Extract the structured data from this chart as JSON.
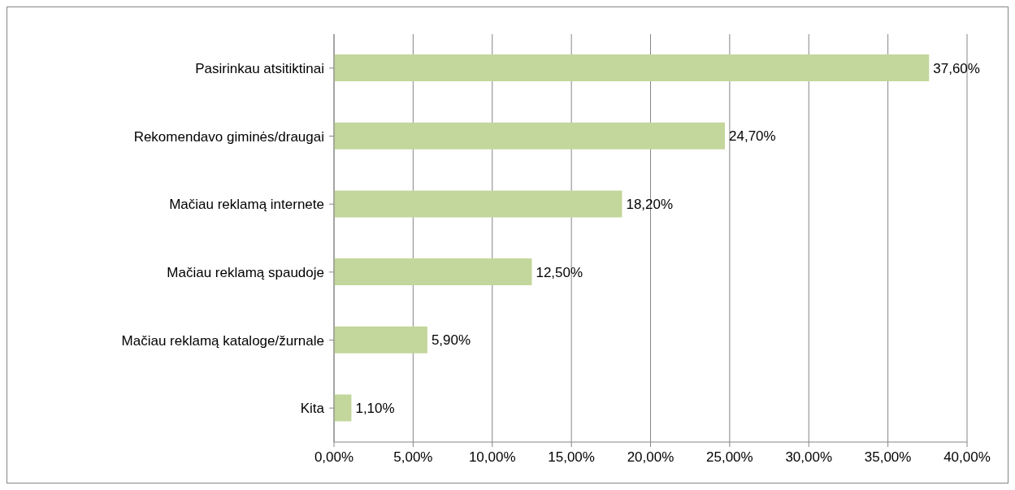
{
  "chart_data": {
    "type": "bar",
    "orientation": "horizontal",
    "categories": [
      "Pasirinkau atsitiktinai",
      "Rekomendavo giminės/draugai",
      "Mačiau reklamą internete",
      "Mačiau reklamą spaudoje",
      "Mačiau reklamą kataloge/žurnale",
      "Kita"
    ],
    "values": [
      37.6,
      24.7,
      18.2,
      12.5,
      5.9,
      1.1
    ],
    "value_labels": [
      "37,60%",
      "24,70%",
      "18,20%",
      "12,50%",
      "5,90%",
      "1,10%"
    ],
    "color": "#c3d69b",
    "xlim": [
      0,
      40
    ],
    "xticks": [
      {
        "value": 0,
        "label": "0,00%"
      },
      {
        "value": 5,
        "label": "5,00%"
      },
      {
        "value": 10,
        "label": "10,00%"
      },
      {
        "value": 15,
        "label": "15,00%"
      },
      {
        "value": 20,
        "label": "20,00%"
      },
      {
        "value": 25,
        "label": "25,00%"
      },
      {
        "value": 30,
        "label": "30,00%"
      },
      {
        "value": 35,
        "label": "35,00%"
      },
      {
        "value": 40,
        "label": "40,00%"
      }
    ],
    "grid": "x"
  }
}
